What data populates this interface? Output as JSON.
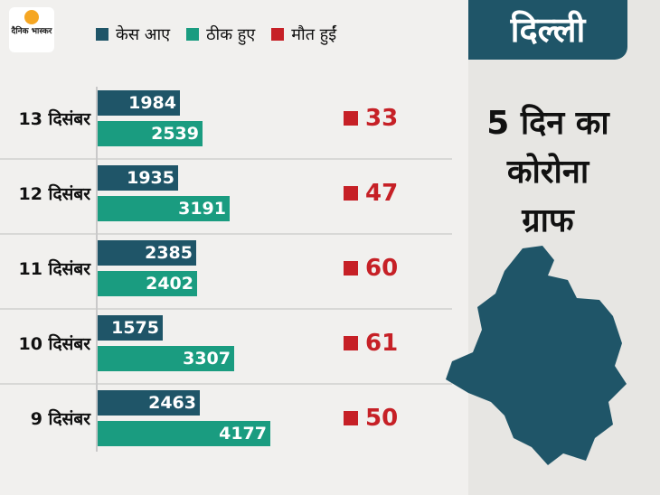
{
  "brand": {
    "logo_text": "दैनिक भास्कर"
  },
  "legend": {
    "cases": "केस आए",
    "recovered": "ठीक हुए",
    "deaths": "मौत हुईं"
  },
  "colors": {
    "cases": "#1f5568",
    "recovered": "#1a9c80",
    "deaths": "#c62026"
  },
  "panel": {
    "region": "दिल्ली",
    "title_line1": "5 दिन का",
    "title_line2": "कोरोना",
    "title_line3": "ग्राफ"
  },
  "chart_data": {
    "type": "bar",
    "orientation": "horizontal",
    "categories": [
      "13 दिसंबर",
      "12 दिसंबर",
      "11 दिसंबर",
      "10 दिसंबर",
      "9 दिसंबर"
    ],
    "series": [
      {
        "name": "केस आए",
        "values": [
          1984,
          1935,
          2385,
          1575,
          2463
        ]
      },
      {
        "name": "ठीक हुए",
        "values": [
          2539,
          3191,
          2402,
          3307,
          4177
        ]
      },
      {
        "name": "मौत हुईं",
        "values": [
          33,
          47,
          60,
          61,
          50
        ]
      }
    ],
    "title": "",
    "legend_position": "top"
  }
}
